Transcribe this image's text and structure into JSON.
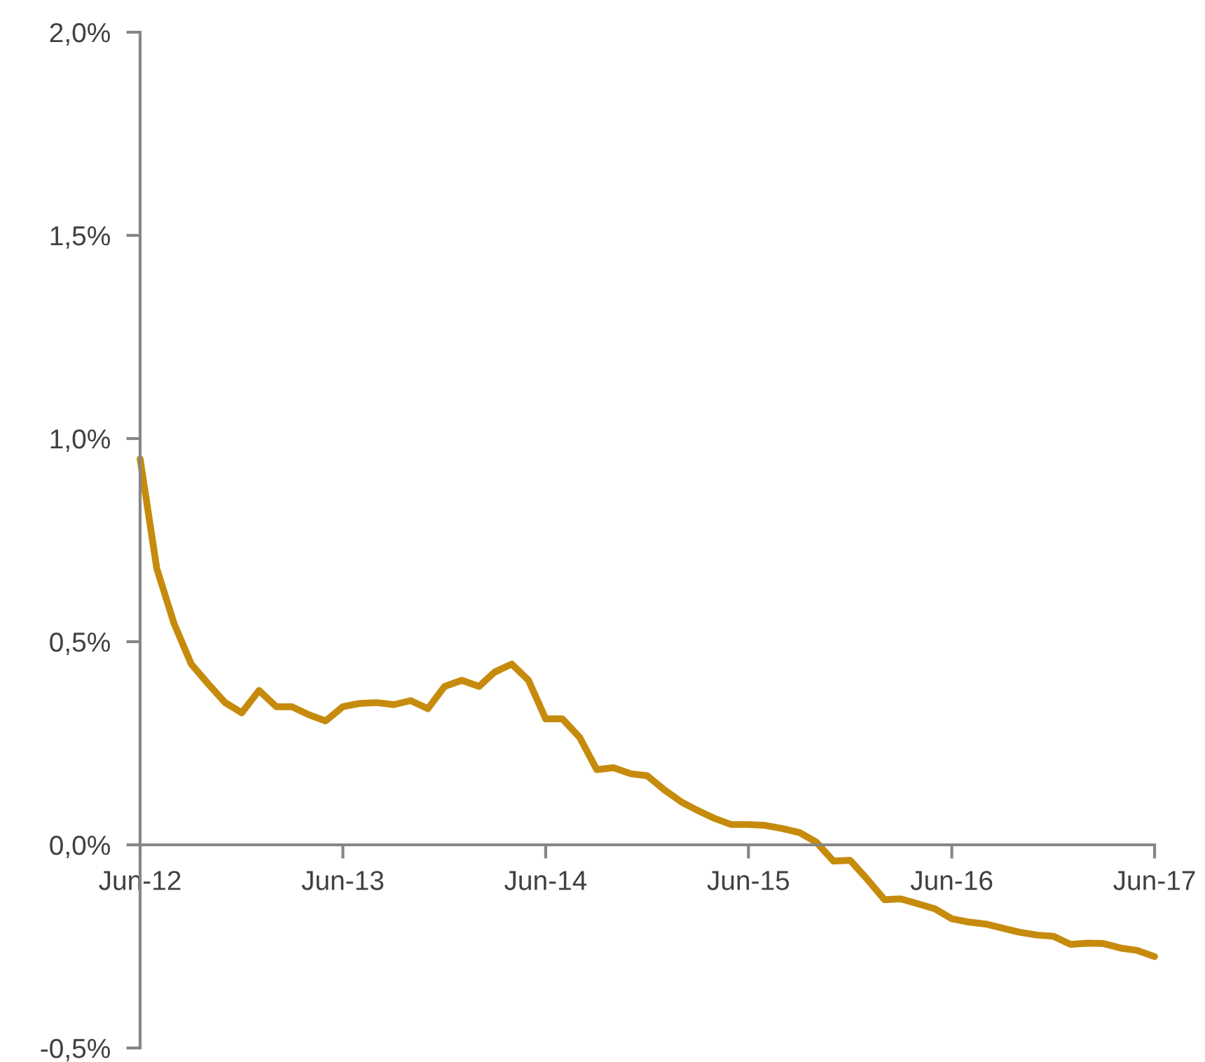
{
  "chart_data": {
    "type": "line",
    "color": "#c68b0c",
    "line_style": "solid",
    "grid": false,
    "legend": false,
    "x": [
      "2012-06",
      "2012-07",
      "2012-08",
      "2012-09",
      "2012-10",
      "2012-11",
      "2012-12",
      "2013-01",
      "2013-02",
      "2013-03",
      "2013-04",
      "2013-05",
      "2013-06",
      "2013-07",
      "2013-08",
      "2013-09",
      "2013-10",
      "2013-11",
      "2013-12",
      "2014-01",
      "2014-02",
      "2014-03",
      "2014-04",
      "2014-05",
      "2014-06",
      "2014-07",
      "2014-08",
      "2014-09",
      "2014-10",
      "2014-11",
      "2014-12",
      "2015-01",
      "2015-02",
      "2015-03",
      "2015-04",
      "2015-05",
      "2015-06",
      "2015-07",
      "2015-08",
      "2015-09",
      "2015-10",
      "2015-11",
      "2015-12",
      "2016-01",
      "2016-02",
      "2016-03",
      "2016-04",
      "2016-05",
      "2016-06",
      "2016-07",
      "2016-08",
      "2016-09",
      "2016-10",
      "2016-11",
      "2016-12",
      "2017-01",
      "2017-02",
      "2017-03",
      "2017-04",
      "2017-05",
      "2017-06"
    ],
    "values": [
      0.95,
      0.68,
      0.545,
      0.445,
      0.397,
      0.35,
      0.325,
      0.38,
      0.34,
      0.34,
      0.32,
      0.305,
      0.34,
      0.348,
      0.35,
      0.345,
      0.355,
      0.335,
      0.39,
      0.405,
      0.39,
      0.425,
      0.445,
      0.405,
      0.31,
      0.31,
      0.265,
      0.185,
      0.19,
      0.175,
      0.17,
      0.135,
      0.105,
      0.085,
      0.065,
      0.05,
      0.05,
      0.048,
      0.04,
      0.03,
      0.007,
      -0.04,
      -0.038,
      -0.085,
      -0.135,
      -0.133,
      -0.145,
      -0.157,
      -0.182,
      -0.19,
      -0.195,
      -0.205,
      -0.215,
      -0.222,
      -0.225,
      -0.245,
      -0.242,
      -0.243,
      -0.254,
      -0.26,
      -0.275
    ],
    "xlim": [
      "2012-06",
      "2017-06"
    ],
    "xticks": [
      {
        "value": "2012-06",
        "label": "Jun-12"
      },
      {
        "value": "2013-06",
        "label": "Jun-13"
      },
      {
        "value": "2014-06",
        "label": "Jun-14"
      },
      {
        "value": "2015-06",
        "label": "Jun-15"
      },
      {
        "value": "2016-06",
        "label": "Jun-16"
      },
      {
        "value": "2017-06",
        "label": "Jun-17"
      }
    ],
    "ylim": [
      -0.5,
      2.0
    ],
    "yticks": [
      {
        "value": -0.5,
        "label": "-0,5%"
      },
      {
        "value": 0,
        "label": "0,0%"
      },
      {
        "value": 0.5,
        "label": "0,5%"
      },
      {
        "value": 1.0,
        "label": "1,0%"
      },
      {
        "value": 1.5,
        "label": "1,5%"
      },
      {
        "value": 2.0,
        "label": "2,0%"
      }
    ]
  }
}
